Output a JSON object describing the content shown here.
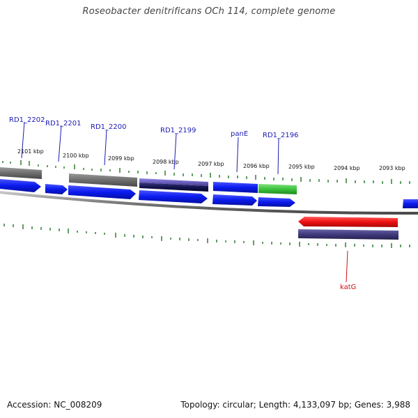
{
  "title": "Roseobacter denitrificans OCh 114, complete genome",
  "footer": {
    "accession": "Accession: NC_008209",
    "stats": "Topology: circular; Length: 4,133,097 bp; Genes: 3,988"
  },
  "scale_labels": [
    "2101 kbp",
    "2100 kbp",
    "2099 kbp",
    "2098 kbp",
    "2097 kbp",
    "2096 kbp",
    "2095 kbp",
    "2094 kbp",
    "2093 kbp"
  ],
  "gene_labels": [
    {
      "text": "RD1_2202",
      "strand": "forward"
    },
    {
      "text": "RD1_2201",
      "strand": "forward"
    },
    {
      "text": "RD1_2200",
      "strand": "forward"
    },
    {
      "text": "RD1_2199",
      "strand": "forward"
    },
    {
      "text": "panE",
      "strand": "forward"
    },
    {
      "text": "RD1_2196",
      "strand": "forward"
    },
    {
      "text": "katG",
      "strand": "reverse"
    }
  ],
  "colors": {
    "cds_blue": "#0a1aee",
    "gene_gray": "#6e6e6e",
    "rrna_purple": "#6b5fc0",
    "dark_navy": "#141450",
    "green": "#3cc23c",
    "red": "#ee1111",
    "backbone": "#8a8a8a",
    "tick_green": "#2e7d2e",
    "label_blue": "#1a1ab4",
    "label_red": "#cc1111"
  }
}
